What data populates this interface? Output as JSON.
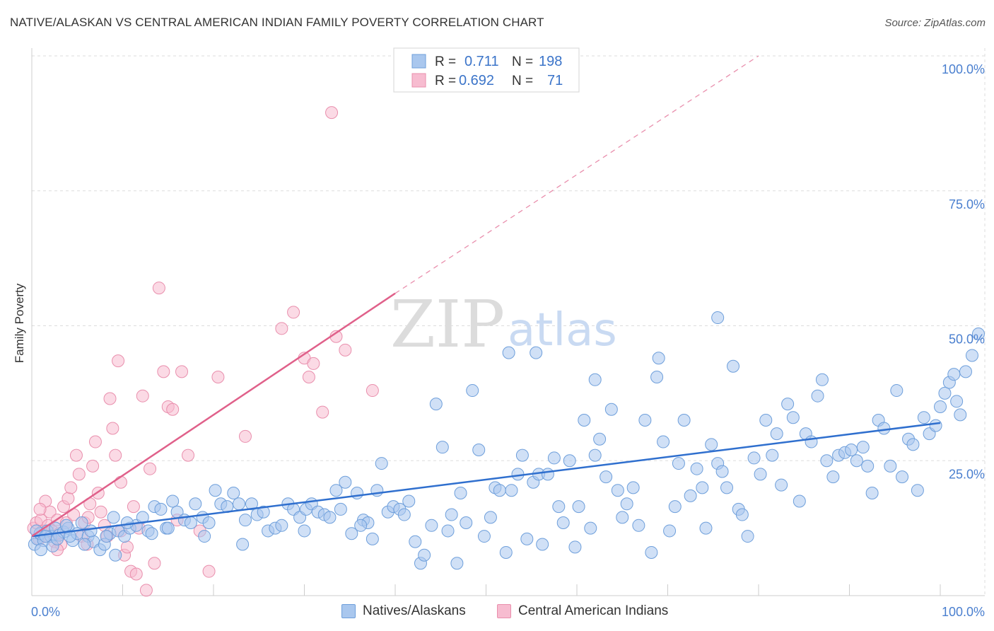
{
  "header": {
    "title": "NATIVE/ALASKAN VS CENTRAL AMERICAN INDIAN FAMILY POVERTY CORRELATION CHART",
    "source": "Source: ZipAtlas.com"
  },
  "watermark": {
    "zip": "ZIP",
    "atlas": "atlas"
  },
  "legend_top": {
    "rows": [
      {
        "r_label": "R =",
        "r_value": "0.711",
        "n_label": "N =",
        "n_value": "198"
      },
      {
        "r_label": "R =",
        "r_value": "0.692",
        "n_label": "N =",
        "n_value": "71"
      }
    ]
  },
  "legend_bottom": [
    "Natives/Alaskans",
    "Central American Indians"
  ],
  "colors": {
    "blue_fill": "#a9c7ee",
    "blue_stroke": "#6e9fdb",
    "blue_line": "#2f6fce",
    "pink_fill": "#f7bcd0",
    "pink_stroke": "#e98fad",
    "pink_line": "#e0608a",
    "tick_text": "#4a7fcf",
    "grid": "#dddddd"
  },
  "chart_data": {
    "type": "scatter",
    "title": "NATIVE/ALASKAN VS CENTRAL AMERICAN INDIAN FAMILY POVERTY CORRELATION CHART",
    "xlabel": "",
    "ylabel": "Family Poverty",
    "xlim": [
      0,
      100
    ],
    "ylim": [
      0,
      100
    ],
    "x_tick_labels": [
      "0.0%",
      "100.0%"
    ],
    "y_tick_labels": [
      "25.0%",
      "50.0%",
      "75.0%",
      "100.0%"
    ],
    "y_ticks": [
      25,
      50,
      75,
      100
    ],
    "grid": true,
    "legend_position": "top-center",
    "series": [
      {
        "name": "Natives/Alaskans",
        "R": 0.711,
        "N": 198,
        "trend": {
          "x": [
            0,
            100
          ],
          "y": [
            11.0,
            32.0
          ],
          "style": "solid"
        },
        "points": [
          [
            0.3,
            9.5
          ],
          [
            0.6,
            10.5
          ],
          [
            0.9,
            11.5
          ],
          [
            1.3,
            10.2
          ],
          [
            1.7,
            12.0
          ],
          [
            2.1,
            11.0
          ],
          [
            2.6,
            12.5
          ],
          [
            3.0,
            11.2
          ],
          [
            3.5,
            11.8
          ],
          [
            4.0,
            12.5
          ],
          [
            4.5,
            10.2
          ],
          [
            5.0,
            11.5
          ],
          [
            5.5,
            13.5
          ],
          [
            6.2,
            11.0
          ],
          [
            6.8,
            10.0
          ],
          [
            7.5,
            8.5
          ],
          [
            8.0,
            9.5
          ],
          [
            8.6,
            11.5
          ],
          [
            9.0,
            14.5
          ],
          [
            9.5,
            12.0
          ],
          [
            10.2,
            11.0
          ],
          [
            10.8,
            12.5
          ],
          [
            11.5,
            13.0
          ],
          [
            12.2,
            14.5
          ],
          [
            12.8,
            12.0
          ],
          [
            13.5,
            16.5
          ],
          [
            14.2,
            16.0
          ],
          [
            14.8,
            12.5
          ],
          [
            15.5,
            17.5
          ],
          [
            16.0,
            15.5
          ],
          [
            16.8,
            14.0
          ],
          [
            17.5,
            13.5
          ],
          [
            18.0,
            17.0
          ],
          [
            18.8,
            14.5
          ],
          [
            19.5,
            13.5
          ],
          [
            20.2,
            19.5
          ],
          [
            20.8,
            17.0
          ],
          [
            21.5,
            16.5
          ],
          [
            22.2,
            19.0
          ],
          [
            22.8,
            17.0
          ],
          [
            23.5,
            14.0
          ],
          [
            24.2,
            17.0
          ],
          [
            24.8,
            15.0
          ],
          [
            25.5,
            15.5
          ],
          [
            26.0,
            12.0
          ],
          [
            26.8,
            12.5
          ],
          [
            27.5,
            13.0
          ],
          [
            28.2,
            17.0
          ],
          [
            28.8,
            16.0
          ],
          [
            29.5,
            14.5
          ],
          [
            30.2,
            16.0
          ],
          [
            30.8,
            17.0
          ],
          [
            31.5,
            15.5
          ],
          [
            32.2,
            15.0
          ],
          [
            32.8,
            14.5
          ],
          [
            33.5,
            19.5
          ],
          [
            34.0,
            16.0
          ],
          [
            34.5,
            21.0
          ],
          [
            35.2,
            11.5
          ],
          [
            35.8,
            19.0
          ],
          [
            36.5,
            14.0
          ],
          [
            37.0,
            13.5
          ],
          [
            37.5,
            10.5
          ],
          [
            38.0,
            19.5
          ],
          [
            38.5,
            24.5
          ],
          [
            39.2,
            15.5
          ],
          [
            39.8,
            16.5
          ],
          [
            40.5,
            16.0
          ],
          [
            41.0,
            15.0
          ],
          [
            41.5,
            17.5
          ],
          [
            42.2,
            10.0
          ],
          [
            42.8,
            6.0
          ],
          [
            43.2,
            7.5
          ],
          [
            44.0,
            13.0
          ],
          [
            44.5,
            35.5
          ],
          [
            45.2,
            27.5
          ],
          [
            45.8,
            12.0
          ],
          [
            46.2,
            15.0
          ],
          [
            46.8,
            6.0
          ],
          [
            47.2,
            19.0
          ],
          [
            47.8,
            13.5
          ],
          [
            48.5,
            38.0
          ],
          [
            49.2,
            27.0
          ],
          [
            49.8,
            11.0
          ],
          [
            50.5,
            14.5
          ],
          [
            51.0,
            20.0
          ],
          [
            51.5,
            19.5
          ],
          [
            52.2,
            8.0
          ],
          [
            52.8,
            19.5
          ],
          [
            53.5,
            22.5
          ],
          [
            54.0,
            26.0
          ],
          [
            54.5,
            10.5
          ],
          [
            55.2,
            21.0
          ],
          [
            55.8,
            22.5
          ],
          [
            56.2,
            9.5
          ],
          [
            56.8,
            22.5
          ],
          [
            57.5,
            25.5
          ],
          [
            58.0,
            16.5
          ],
          [
            58.5,
            13.5
          ],
          [
            59.2,
            25.0
          ],
          [
            59.8,
            9.0
          ],
          [
            60.2,
            16.5
          ],
          [
            60.8,
            32.5
          ],
          [
            61.5,
            12.5
          ],
          [
            62.0,
            26.0
          ],
          [
            62.5,
            29.0
          ],
          [
            63.2,
            22.0
          ],
          [
            63.8,
            34.5
          ],
          [
            64.5,
            19.5
          ],
          [
            65.0,
            14.5
          ],
          [
            65.5,
            17.0
          ],
          [
            66.2,
            20.0
          ],
          [
            66.8,
            13.0
          ],
          [
            67.5,
            32.5
          ],
          [
            68.2,
            8.0
          ],
          [
            68.8,
            40.5
          ],
          [
            69.5,
            28.5
          ],
          [
            70.2,
            12.0
          ],
          [
            70.8,
            16.5
          ],
          [
            71.2,
            24.5
          ],
          [
            71.8,
            32.5
          ],
          [
            72.5,
            18.5
          ],
          [
            73.2,
            23.5
          ],
          [
            73.8,
            20.0
          ],
          [
            74.2,
            12.5
          ],
          [
            74.8,
            28.0
          ],
          [
            75.5,
            24.5
          ],
          [
            76.0,
            23.0
          ],
          [
            76.5,
            20.0
          ],
          [
            77.2,
            42.5
          ],
          [
            77.8,
            16.0
          ],
          [
            78.2,
            15.0
          ],
          [
            78.8,
            11.0
          ],
          [
            79.5,
            25.5
          ],
          [
            80.2,
            22.5
          ],
          [
            80.8,
            32.5
          ],
          [
            81.5,
            26.0
          ],
          [
            82.0,
            30.0
          ],
          [
            82.5,
            20.5
          ],
          [
            83.2,
            35.5
          ],
          [
            83.8,
            33.0
          ],
          [
            84.5,
            17.5
          ],
          [
            85.2,
            30.0
          ],
          [
            85.8,
            28.5
          ],
          [
            86.5,
            37.0
          ],
          [
            87.0,
            40.0
          ],
          [
            87.5,
            25.0
          ],
          [
            88.2,
            22.0
          ],
          [
            88.8,
            26.0
          ],
          [
            89.5,
            26.5
          ],
          [
            90.2,
            27.0
          ],
          [
            90.8,
            25.0
          ],
          [
            91.5,
            27.5
          ],
          [
            92.0,
            24.0
          ],
          [
            92.5,
            19.0
          ],
          [
            93.2,
            32.5
          ],
          [
            93.8,
            31.0
          ],
          [
            94.5,
            24.0
          ],
          [
            95.2,
            38.0
          ],
          [
            95.8,
            22.0
          ],
          [
            96.5,
            29.0
          ],
          [
            97.0,
            28.0
          ],
          [
            97.5,
            19.5
          ],
          [
            98.2,
            33.0
          ],
          [
            98.8,
            30.0
          ],
          [
            99.5,
            31.5
          ],
          [
            100.0,
            35.0
          ],
          [
            100.5,
            37.5
          ],
          [
            101.0,
            39.5
          ],
          [
            101.5,
            41.0
          ],
          [
            101.8,
            36.0
          ],
          [
            102.2,
            33.5
          ],
          [
            102.8,
            41.5
          ],
          [
            103.5,
            44.5
          ],
          [
            104.2,
            48.5
          ],
          [
            52.5,
            45.0
          ],
          [
            55.5,
            45.0
          ],
          [
            75.5,
            51.5
          ],
          [
            62.0,
            40.0
          ],
          [
            69.0,
            44.0
          ],
          [
            30.0,
            12.0
          ],
          [
            36.2,
            13.0
          ],
          [
            23.2,
            9.5
          ],
          [
            19.0,
            11.0
          ],
          [
            13.2,
            11.5
          ],
          [
            9.2,
            7.5
          ],
          [
            5.8,
            9.5
          ],
          [
            3.8,
            13.0
          ],
          [
            2.3,
            9.2
          ],
          [
            1.0,
            8.5
          ],
          [
            0.5,
            12.0
          ],
          [
            1.5,
            11.0
          ],
          [
            2.8,
            10.5
          ],
          [
            4.2,
            11.0
          ],
          [
            6.5,
            12.0
          ],
          [
            8.2,
            11.0
          ],
          [
            10.5,
            13.5
          ],
          [
            15.0,
            12.5
          ]
        ]
      },
      {
        "name": "Central American Indians",
        "R": 0.692,
        "N": 71,
        "trend": {
          "x": [
            0,
            40
          ],
          "y": [
            11.0,
            56.0
          ],
          "style": "solid",
          "extended": {
            "x": [
              40,
              80
            ],
            "y": [
              56.0,
              100.0
            ],
            "style": "dashed"
          }
        },
        "points": [
          [
            0.2,
            12.5
          ],
          [
            0.5,
            13.5
          ],
          [
            0.8,
            10.5
          ],
          [
            1.0,
            14.0
          ],
          [
            1.2,
            12.0
          ],
          [
            1.5,
            11.0
          ],
          [
            1.8,
            13.0
          ],
          [
            2.0,
            15.5
          ],
          [
            2.2,
            12.0
          ],
          [
            2.5,
            10.0
          ],
          [
            2.8,
            14.0
          ],
          [
            3.0,
            11.5
          ],
          [
            3.2,
            9.5
          ],
          [
            3.5,
            16.5
          ],
          [
            3.8,
            13.5
          ],
          [
            4.0,
            18.0
          ],
          [
            4.3,
            20.0
          ],
          [
            4.6,
            15.0
          ],
          [
            4.9,
            26.0
          ],
          [
            5.2,
            22.5
          ],
          [
            5.5,
            11.0
          ],
          [
            5.8,
            13.5
          ],
          [
            6.1,
            9.5
          ],
          [
            6.4,
            17.0
          ],
          [
            6.7,
            24.0
          ],
          [
            7.0,
            28.5
          ],
          [
            7.3,
            19.0
          ],
          [
            7.6,
            15.5
          ],
          [
            8.0,
            13.0
          ],
          [
            8.3,
            11.0
          ],
          [
            8.6,
            36.5
          ],
          [
            8.9,
            31.0
          ],
          [
            9.2,
            26.0
          ],
          [
            9.5,
            43.5
          ],
          [
            9.8,
            21.0
          ],
          [
            10.2,
            7.5
          ],
          [
            10.5,
            9.0
          ],
          [
            10.9,
            4.5
          ],
          [
            11.2,
            16.5
          ],
          [
            11.5,
            4.0
          ],
          [
            11.8,
            12.5
          ],
          [
            12.2,
            37.0
          ],
          [
            12.6,
            1.0
          ],
          [
            13.0,
            23.5
          ],
          [
            13.5,
            6.0
          ],
          [
            14.0,
            57.0
          ],
          [
            14.5,
            41.5
          ],
          [
            15.0,
            35.0
          ],
          [
            15.5,
            34.5
          ],
          [
            16.0,
            14.0
          ],
          [
            16.5,
            41.5
          ],
          [
            17.2,
            26.0
          ],
          [
            18.5,
            12.0
          ],
          [
            19.5,
            4.5
          ],
          [
            20.5,
            40.5
          ],
          [
            23.5,
            29.5
          ],
          [
            27.5,
            49.5
          ],
          [
            28.8,
            52.5
          ],
          [
            30.0,
            44.0
          ],
          [
            30.5,
            40.5
          ],
          [
            31.0,
            43.0
          ],
          [
            32.0,
            34.0
          ],
          [
            33.0,
            89.5
          ],
          [
            33.5,
            48.0
          ],
          [
            34.5,
            45.5
          ],
          [
            37.5,
            38.0
          ],
          [
            1.5,
            17.5
          ],
          [
            2.8,
            8.5
          ],
          [
            6.2,
            14.5
          ],
          [
            9.8,
            12.0
          ],
          [
            0.9,
            16.0
          ]
        ]
      }
    ]
  }
}
